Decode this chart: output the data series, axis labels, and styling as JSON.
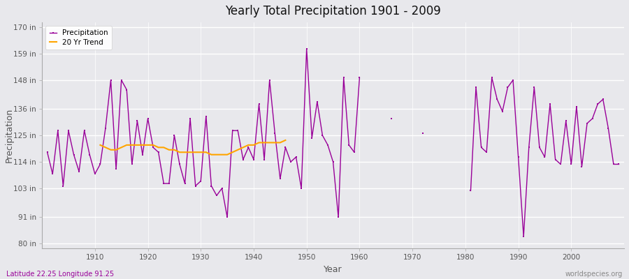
{
  "title": "Yearly Total Precipitation 1901 - 2009",
  "xlabel": "Year",
  "ylabel": "Precipitation",
  "subtitle_lat": "Latitude 22.25 Longitude 91.25",
  "watermark": "worldspecies.org",
  "yticks": [
    80,
    91,
    103,
    114,
    125,
    136,
    148,
    159,
    170
  ],
  "ytick_labels": [
    "80 in",
    "91 in",
    "103 in",
    "114 in",
    "125 in",
    "136 in",
    "148 in",
    "159 in",
    "170 in"
  ],
  "years": [
    1901,
    1902,
    1903,
    1904,
    1905,
    1906,
    1907,
    1908,
    1909,
    1910,
    1911,
    1912,
    1913,
    1914,
    1915,
    1916,
    1917,
    1918,
    1919,
    1920,
    1921,
    1922,
    1923,
    1924,
    1925,
    1926,
    1927,
    1928,
    1929,
    1930,
    1931,
    1932,
    1933,
    1934,
    1935,
    1936,
    1937,
    1938,
    1939,
    1940,
    1941,
    1942,
    1943,
    1944,
    1945,
    1946,
    1947,
    1948,
    1949,
    1950,
    1951,
    1952,
    1953,
    1954,
    1955,
    1956,
    1957,
    1958,
    1959,
    1960,
    1961,
    1962,
    1963,
    1964,
    1965,
    1966,
    1967,
    1968,
    1969,
    1970,
    1971,
    1972,
    1973,
    1974,
    1975,
    1976,
    1977,
    1978,
    1979,
    1980,
    1981,
    1982,
    1983,
    1984,
    1985,
    1986,
    1987,
    1988,
    1989,
    1990,
    1991,
    1992,
    1993,
    1994,
    1995,
    1996,
    1997,
    1998,
    1999,
    2000,
    2001,
    2002,
    2003,
    2004,
    2005,
    2006,
    2007,
    2008,
    2009
  ],
  "precip": [
    118,
    109,
    127,
    104,
    127,
    117,
    110,
    127,
    117,
    109,
    113,
    128,
    148,
    111,
    148,
    144,
    113,
    131,
    117,
    132,
    120,
    118,
    105,
    105,
    125,
    113,
    105,
    132,
    104,
    106,
    133,
    104,
    100,
    103,
    91,
    127,
    127,
    115,
    120,
    115,
    138,
    115,
    148,
    126,
    107,
    120,
    114,
    116,
    103,
    161,
    124,
    139,
    125,
    121,
    114,
    91,
    149,
    121,
    118,
    149,
    null,
    null,
    null,
    null,
    null,
    132,
    null,
    null,
    null,
    null,
    null,
    126,
    null,
    null,
    null,
    null,
    null,
    null,
    null,
    null,
    102,
    145,
    120,
    118,
    149,
    140,
    135,
    145,
    148,
    116,
    83,
    120,
    145,
    120,
    116,
    138,
    115,
    113,
    131,
    113,
    137,
    112,
    130,
    132,
    138,
    140,
    128,
    113,
    113
  ],
  "precip_color": "#990099",
  "trend_color": "#FFA500",
  "bg_color": "#e8e8ec",
  "plot_bg": "#e8e8ec",
  "grid_color": "#ffffff",
  "ylim": [
    78,
    172
  ],
  "xlim": [
    1900,
    2010
  ],
  "trend_years": [
    1911,
    1912,
    1913,
    1914,
    1915,
    1916,
    1917,
    1918,
    1919,
    1920,
    1921,
    1922,
    1923,
    1924,
    1925,
    1926,
    1927,
    1928,
    1929,
    1930,
    1931,
    1932,
    1933,
    1934,
    1935,
    1936,
    1937,
    1938,
    1939,
    1940,
    1941,
    1942,
    1943,
    1944,
    1945,
    1946
  ],
  "trend_vals": [
    121,
    120,
    119,
    119,
    120,
    121,
    121,
    121,
    121,
    121,
    121,
    120,
    120,
    119,
    119,
    118,
    118,
    118,
    118,
    118,
    118,
    117,
    117,
    117,
    117,
    118,
    119,
    120,
    121,
    121,
    122,
    122,
    122,
    122,
    122,
    123
  ]
}
